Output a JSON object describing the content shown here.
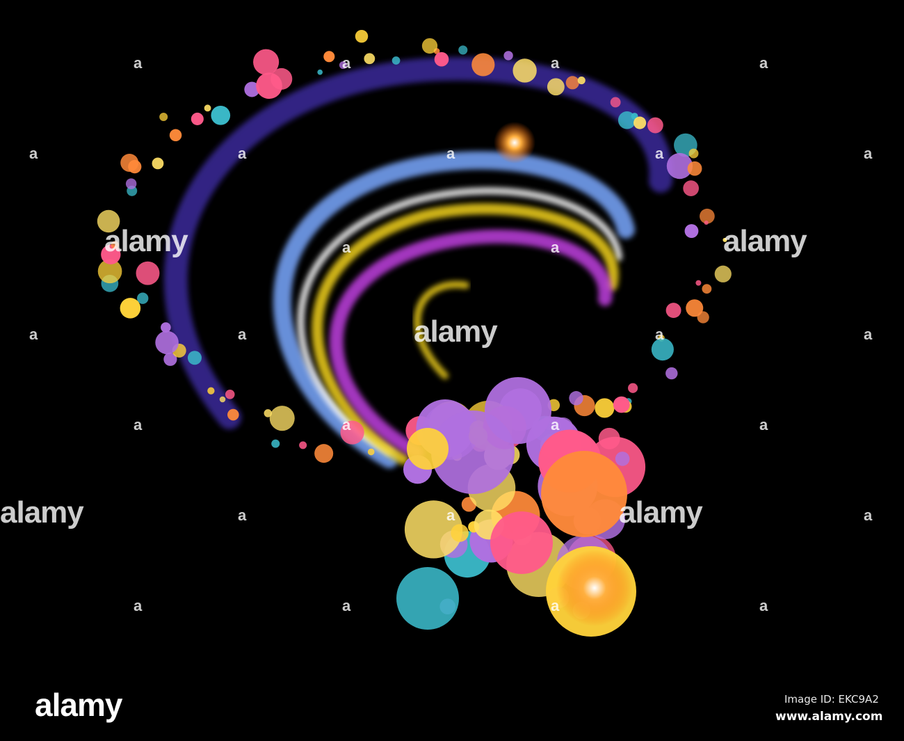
{
  "footer": {
    "logo": "alamy",
    "image_id": "Image ID: EKC9A2",
    "website": "www.alamy.com"
  },
  "watermark": {
    "word": "alamy",
    "letter": "a"
  },
  "palette": {
    "background": "#000000",
    "arcs": [
      "#3a2a9a",
      "#7aa8ff",
      "#ffffff",
      "#f2d21a",
      "#c040e0"
    ],
    "bubbles": [
      "#ff8a3a",
      "#ffd23a",
      "#3ab8c8",
      "#ff5a8a",
      "#b070e0",
      "#ffe066"
    ]
  }
}
